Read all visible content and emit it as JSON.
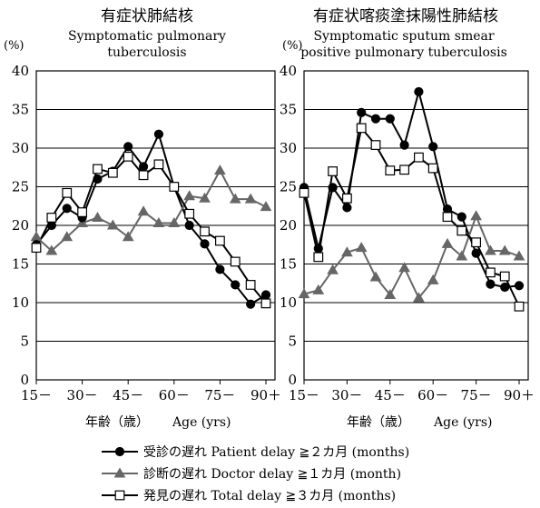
{
  "chart_data": [
    {
      "type": "line",
      "title": "有症状肺結核",
      "subtitle": [
        "Symptomatic pulmonary",
        "tuberculosis"
      ],
      "ylabel": "(%)",
      "xlabel_ja": "年齢（歳）",
      "xlabel_en": "Age (yrs)",
      "ylim": [
        0,
        40
      ],
      "yticks": [
        "0",
        "5",
        "10",
        "15",
        "20",
        "25",
        "30",
        "35",
        "40"
      ],
      "xtick_labels": [
        "15－",
        "30－",
        "45－",
        "60－",
        "75－",
        "90＋"
      ],
      "grid": true,
      "x": [
        15,
        20,
        25,
        30,
        35,
        40,
        45,
        50,
        55,
        60,
        65,
        70,
        75,
        80,
        85,
        90
      ],
      "series": [
        {
          "key": "patient",
          "values": [
            17.5,
            20.0,
            22.2,
            21.0,
            26.0,
            27.0,
            30.2,
            27.6,
            31.8,
            25.0,
            20.0,
            17.6,
            14.3,
            12.3,
            9.8,
            11.0
          ]
        },
        {
          "key": "doctor",
          "values": [
            18.5,
            16.7,
            18.5,
            20.3,
            21.0,
            20.0,
            18.5,
            21.8,
            20.3,
            20.3,
            23.8,
            23.5,
            27.1,
            23.4,
            23.4,
            22.4
          ]
        },
        {
          "key": "total",
          "values": [
            17.1,
            21.0,
            24.2,
            21.7,
            27.3,
            26.8,
            28.9,
            26.5,
            27.9,
            25.0,
            21.5,
            19.2,
            18.0,
            15.3,
            12.3,
            9.9
          ]
        }
      ]
    },
    {
      "type": "line",
      "title": "有症状喀痰塗抹陽性肺結核",
      "subtitle": [
        "Symptomatic sputum smear",
        "positive pulmonary tuberculosis"
      ],
      "ylabel": "(%)",
      "xlabel_ja": "年齢（歳）",
      "xlabel_en": "Age (yrs)",
      "ylim": [
        0,
        40
      ],
      "yticks": [
        "0",
        "5",
        "10",
        "15",
        "20",
        "25",
        "30",
        "35",
        "40"
      ],
      "xtick_labels": [
        "15－",
        "30－",
        "45－",
        "60－",
        "75－",
        "90＋"
      ],
      "grid": true,
      "x": [
        15,
        20,
        25,
        30,
        35,
        40,
        45,
        50,
        55,
        60,
        65,
        70,
        75,
        80,
        85,
        90
      ],
      "series": [
        {
          "key": "patient",
          "values": [
            24.9,
            17.0,
            24.9,
            22.3,
            34.6,
            33.8,
            33.8,
            30.4,
            37.3,
            30.2,
            22.1,
            21.1,
            16.4,
            12.4,
            12.0,
            12.2
          ]
        },
        {
          "key": "doctor",
          "values": [
            11.1,
            11.6,
            14.2,
            16.5,
            17.1,
            13.3,
            11.0,
            14.5,
            10.6,
            12.9,
            17.6,
            16.0,
            21.2,
            16.7,
            16.7,
            16.0
          ]
        },
        {
          "key": "total",
          "values": [
            24.2,
            15.9,
            27.0,
            23.5,
            32.6,
            30.4,
            27.1,
            27.2,
            28.8,
            27.4,
            21.1,
            19.3,
            17.8,
            13.9,
            13.4,
            9.5
          ]
        }
      ]
    }
  ],
  "legend": [
    {
      "key": "patient",
      "label": "受診の遅れ Patient delay ≧２カ月 (months)",
      "marker": "circle-filled",
      "color": "#000000"
    },
    {
      "key": "doctor",
      "label": "診断の遅れ Doctor delay ≧１カ月 (month)",
      "marker": "triangle-gray",
      "color": "#666666"
    },
    {
      "key": "total",
      "label": "発見の遅れ Total delay ≧３カ月 (months)",
      "marker": "square-open",
      "color": "#000000"
    }
  ]
}
